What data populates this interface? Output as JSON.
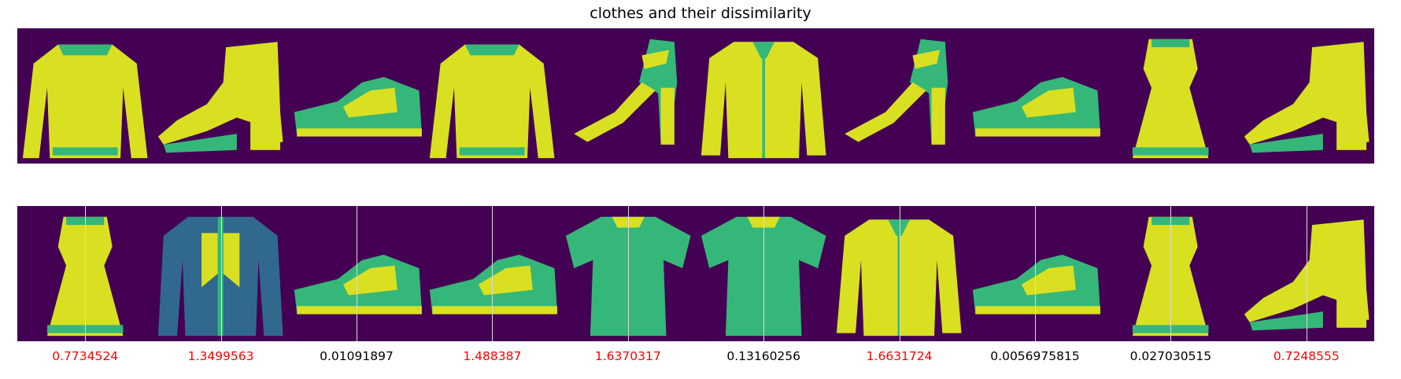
{
  "chart_data": {
    "type": "image_grid",
    "title": "clothes and their dissimilarity",
    "colormap": "viridis",
    "rows": [
      {
        "items": [
          {
            "item": "pullover-icon"
          },
          {
            "item": "ankle-boot-icon"
          },
          {
            "item": "sneaker-icon"
          },
          {
            "item": "pullover-icon"
          },
          {
            "item": "sandal-icon"
          },
          {
            "item": "shirt-icon"
          },
          {
            "item": "sandal-icon"
          },
          {
            "item": "sneaker-icon"
          },
          {
            "item": "dress-icon"
          },
          {
            "item": "ankle-boot-icon"
          }
        ]
      },
      {
        "items": [
          {
            "item": "dress-icon"
          },
          {
            "item": "coat-icon"
          },
          {
            "item": "sneaker-icon"
          },
          {
            "item": "sneaker-icon"
          },
          {
            "item": "tshirt-icon"
          },
          {
            "item": "tshirt-icon"
          },
          {
            "item": "shirt-icon"
          },
          {
            "item": "sneaker-icon"
          },
          {
            "item": "dress-icon"
          },
          {
            "item": "ankle-boot-icon"
          }
        ]
      }
    ],
    "scores": [
      {
        "value": "0.7734524",
        "color": "#ff0000"
      },
      {
        "value": "1.3499563",
        "color": "#ff0000"
      },
      {
        "value": "0.01091897",
        "color": "#000000"
      },
      {
        "value": "1.488387",
        "color": "#ff0000"
      },
      {
        "value": "1.6370317",
        "color": "#ff0000"
      },
      {
        "value": "0.13160256",
        "color": "#000000"
      },
      {
        "value": "1.6631724",
        "color": "#ff0000"
      },
      {
        "value": "0.0056975815",
        "color": "#000000"
      },
      {
        "value": "0.027030515",
        "color": "#000000"
      },
      {
        "value": "0.7248555",
        "color": "#ff0000"
      }
    ],
    "background_color": "#440154",
    "high_color": "#d9e021",
    "mid_color": "#35b779",
    "low_color": "#31688e"
  }
}
